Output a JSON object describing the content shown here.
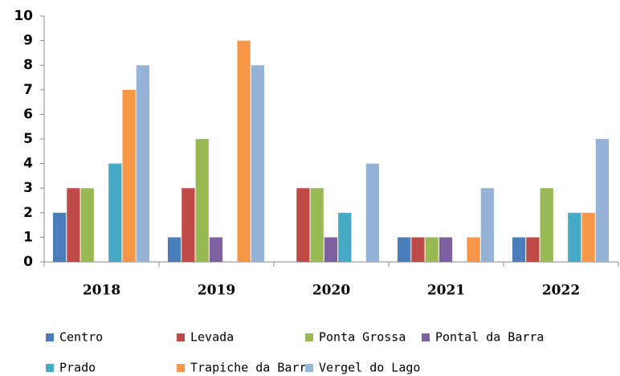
{
  "chart_data": {
    "type": "bar",
    "categories": [
      "2018",
      "2019",
      "2020",
      "2021",
      "2022"
    ],
    "series": [
      {
        "name": "Centro",
        "color": "#4a7ebb",
        "values": [
          2,
          1,
          0,
          1,
          1
        ]
      },
      {
        "name": "Levada",
        "color": "#be4b48",
        "values": [
          3,
          3,
          3,
          1,
          1
        ]
      },
      {
        "name": "Ponta Grossa",
        "color": "#98b954",
        "values": [
          3,
          5,
          3,
          1,
          3
        ]
      },
      {
        "name": "Pontal da Barra",
        "color": "#7d60a0",
        "values": [
          0,
          1,
          1,
          1,
          0
        ]
      },
      {
        "name": "Prado",
        "color": "#46aac5",
        "values": [
          4,
          0,
          2,
          0,
          2
        ]
      },
      {
        "name": "Trapiche da Barra",
        "color": "#f79646",
        "values": [
          7,
          9,
          0,
          1,
          2
        ]
      },
      {
        "name": "Vergel do Lago",
        "color": "#95b3d7",
        "values": [
          8,
          8,
          4,
          3,
          5
        ]
      }
    ],
    "ylim": [
      0,
      10
    ],
    "yticks": [
      0,
      1,
      2,
      3,
      4,
      5,
      6,
      7,
      8,
      9,
      10
    ],
    "legend": "bottom"
  }
}
